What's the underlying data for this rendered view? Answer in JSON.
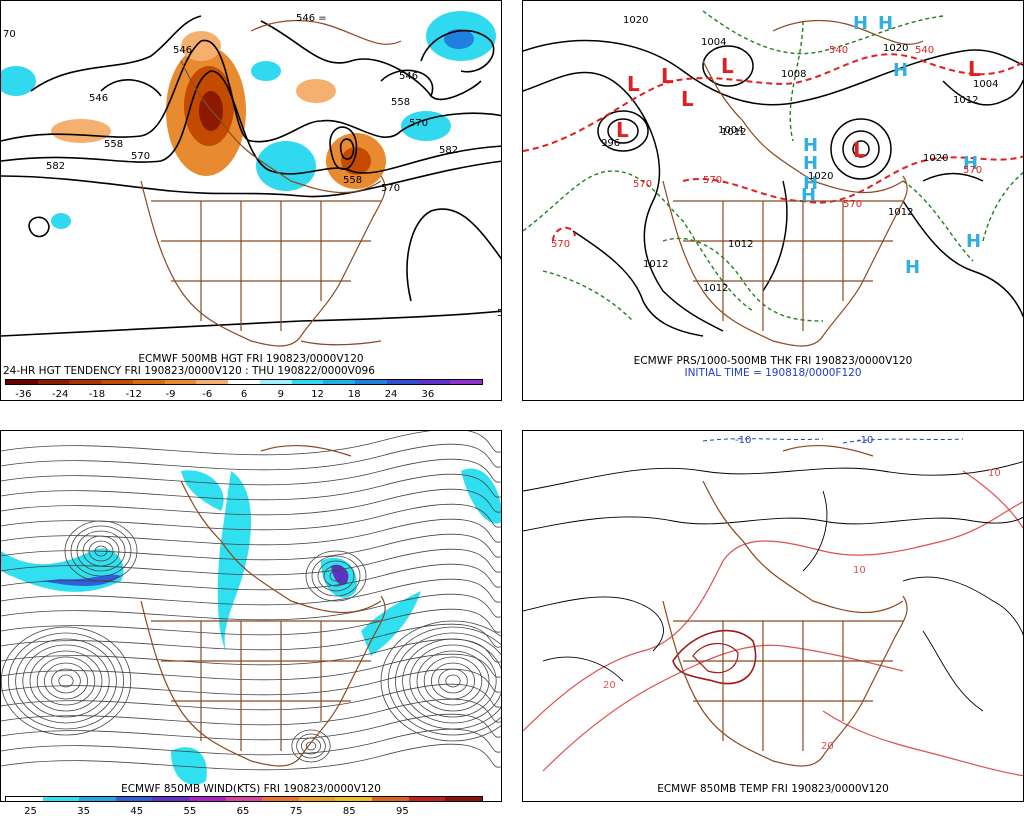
{
  "panels": {
    "p1": {
      "title1": "ECMWF 500MB HGT FRI 190823/0000V120",
      "title2": "24-HR HGT TENDENCY FRI 190823/0000V120 : THU 190822/0000V096",
      "colorbar": {
        "labels": [
          "-36",
          "-24",
          "-18",
          "-12",
          "-9",
          "-6",
          "6",
          "9",
          "12",
          "18",
          "24",
          "36"
        ],
        "colors": [
          "#6b0000",
          "#8b1a00",
          "#a83200",
          "#c44a00",
          "#d96a10",
          "#e88a30",
          "#f5b070",
          "#ffffff",
          "#9ff0ff",
          "#30d8f0",
          "#20b0e8",
          "#2080e0",
          "#3050d0",
          "#6030c8",
          "#9030d0"
        ]
      },
      "contour_labels": [
        "546",
        "546",
        "546",
        "558",
        "558",
        "558",
        "570",
        "570",
        "570",
        "582",
        "582",
        "570"
      ],
      "edge_labels": [
        "546 =",
        "70",
        "5"
      ]
    },
    "p2": {
      "title1": "ECMWF PRS/1000-500MB THK FRI 190823/0000V120",
      "title2": "INITIAL TIME = 190818/0000F120",
      "labels_L": [
        "L",
        "L",
        "L",
        "L",
        "L",
        "L",
        "L"
      ],
      "labels_H": [
        "H",
        "H",
        "H",
        "H",
        "H",
        "H",
        "H",
        "H",
        "H",
        "H"
      ],
      "isobar_labels": [
        "1020",
        "1004",
        "1008",
        "1012",
        "1012",
        "1012",
        "1020",
        "1020",
        "1004",
        "996",
        "1012",
        "1020",
        "1012",
        "1012",
        "1004"
      ],
      "thickness_labels": [
        "540",
        "540",
        "570",
        "570",
        "570",
        "570",
        "570"
      ]
    },
    "p3": {
      "title1": "ECMWF 850MB WIND(KTS) FRI 190823/0000V120",
      "colorbar": {
        "labels": [
          "25",
          "35",
          "45",
          "55",
          "65",
          "75",
          "85",
          "95"
        ],
        "colors": [
          "#ffffff",
          "#30e0f0",
          "#20a8e8",
          "#3060e0",
          "#6030d0",
          "#b020c8",
          "#e040a0",
          "#f07030",
          "#f0a020",
          "#e8c020",
          "#e06020",
          "#c02020",
          "#901010"
        ]
      }
    },
    "p4": {
      "title1": "ECMWF 850MB TEMP FRI 190823/0000V120",
      "temp_labels": [
        "-10",
        "-10",
        "10",
        "10",
        "20",
        "20"
      ]
    }
  },
  "colors": {
    "coast": "#8b4a22",
    "contour": "#000000",
    "thickness_warm": "#e02020",
    "thickness_cold": "#208020",
    "high": "#30b0e0",
    "low": "#e02020",
    "temp_pos": "#e05050",
    "temp_neg": "#2040c0"
  }
}
